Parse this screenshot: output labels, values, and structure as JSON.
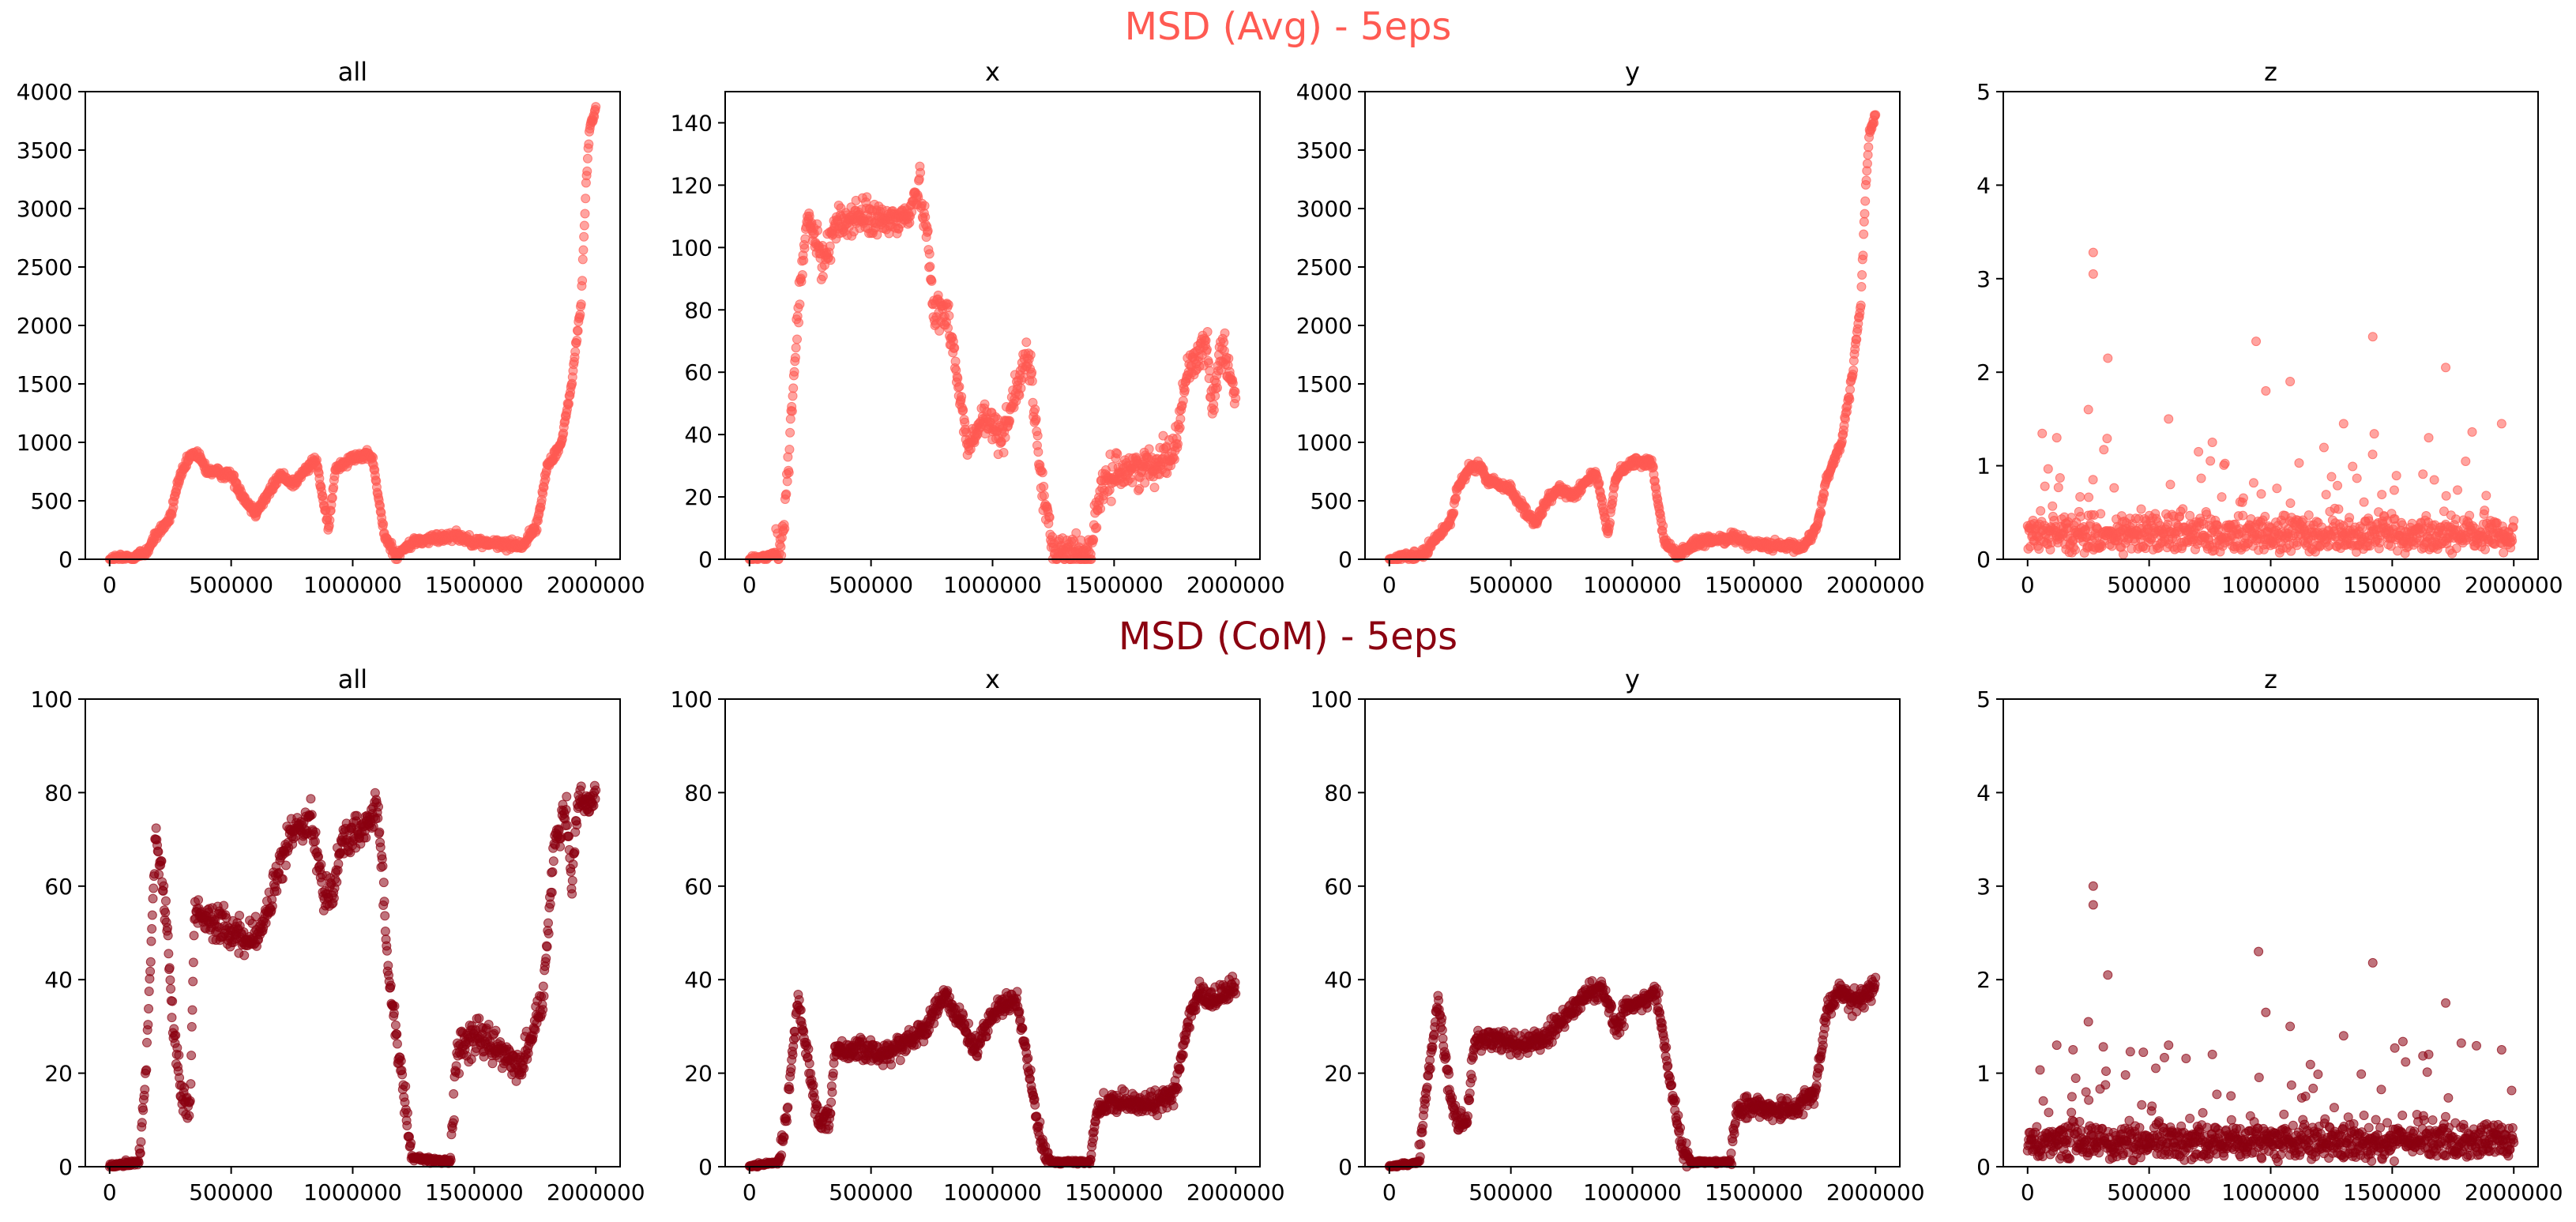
{
  "figure": {
    "rows": [
      {
        "title": "MSD (Avg) - 5eps",
        "color": "#ff5a52"
      },
      {
        "title": "MSD (CoM) - 5eps",
        "color": "#8b0010"
      }
    ]
  },
  "chart_data": [
    {
      "type": "scatter",
      "row": 0,
      "col": 0,
      "title": "all",
      "xlabel": "",
      "ylabel": "",
      "color": "#ff5a52",
      "xlim": [
        -100000,
        2100000
      ],
      "ylim": [
        0,
        4000
      ],
      "xticks": [
        0,
        500000,
        1000000,
        1500000,
        2000000
      ],
      "yticks": [
        0,
        500,
        1000,
        1500,
        2000,
        2500,
        3000,
        3500,
        4000
      ],
      "trend": [
        [
          0,
          0
        ],
        [
          100000,
          20
        ],
        [
          150000,
          60
        ],
        [
          200000,
          230
        ],
        [
          250000,
          350
        ],
        [
          280000,
          650
        ],
        [
          330000,
          880
        ],
        [
          360000,
          900
        ],
        [
          400000,
          760
        ],
        [
          500000,
          720
        ],
        [
          560000,
          500
        ],
        [
          600000,
          400
        ],
        [
          650000,
          550
        ],
        [
          700000,
          720
        ],
        [
          760000,
          650
        ],
        [
          800000,
          750
        ],
        [
          850000,
          850
        ],
        [
          900000,
          250
        ],
        [
          930000,
          780
        ],
        [
          1000000,
          880
        ],
        [
          1080000,
          880
        ],
        [
          1130000,
          200
        ],
        [
          1180000,
          30
        ],
        [
          1250000,
          150
        ],
        [
          1350000,
          180
        ],
        [
          1420000,
          210
        ],
        [
          1500000,
          150
        ],
        [
          1600000,
          130
        ],
        [
          1700000,
          120
        ],
        [
          1760000,
          300
        ],
        [
          1800000,
          800
        ],
        [
          1860000,
          1000
        ],
        [
          1900000,
          1500
        ],
        [
          1940000,
          2200
        ],
        [
          1960000,
          3200
        ],
        [
          1975000,
          3700
        ],
        [
          2000000,
          3850
        ]
      ],
      "noise": 45
    },
    {
      "type": "scatter",
      "row": 0,
      "col": 1,
      "title": "x",
      "xlabel": "",
      "ylabel": "",
      "color": "#ff5a52",
      "xlim": [
        -100000,
        2100000
      ],
      "ylim": [
        0,
        150
      ],
      "xticks": [
        0,
        500000,
        1000000,
        1500000,
        2000000
      ],
      "yticks": [
        0,
        20,
        40,
        60,
        80,
        100,
        120,
        140
      ],
      "trend": [
        [
          0,
          0
        ],
        [
          80000,
          1
        ],
        [
          130000,
          3
        ],
        [
          160000,
          30
        ],
        [
          200000,
          80
        ],
        [
          240000,
          110
        ],
        [
          300000,
          95
        ],
        [
          350000,
          107
        ],
        [
          450000,
          110
        ],
        [
          550000,
          108
        ],
        [
          650000,
          110
        ],
        [
          700000,
          120
        ],
        [
          730000,
          105
        ],
        [
          760000,
          80
        ],
        [
          820000,
          78
        ],
        [
          860000,
          55
        ],
        [
          900000,
          35
        ],
        [
          960000,
          45
        ],
        [
          1040000,
          40
        ],
        [
          1100000,
          55
        ],
        [
          1150000,
          65
        ],
        [
          1200000,
          25
        ],
        [
          1250000,
          3
        ],
        [
          1400000,
          2
        ],
        [
          1440000,
          20
        ],
        [
          1500000,
          28
        ],
        [
          1650000,
          30
        ],
        [
          1750000,
          35
        ],
        [
          1800000,
          60
        ],
        [
          1880000,
          70
        ],
        [
          1900000,
          50
        ],
        [
          1950000,
          70
        ],
        [
          2000000,
          50
        ]
      ],
      "noise": 6
    },
    {
      "type": "scatter",
      "row": 0,
      "col": 2,
      "title": "y",
      "xlabel": "",
      "ylabel": "",
      "color": "#ff5a52",
      "xlim": [
        -100000,
        2100000
      ],
      "ylim": [
        0,
        4000
      ],
      "xticks": [
        0,
        500000,
        1000000,
        1500000,
        2000000
      ],
      "yticks": [
        0,
        500,
        1000,
        1500,
        2000,
        2500,
        3000,
        3500,
        4000
      ],
      "trend": [
        [
          0,
          0
        ],
        [
          100000,
          20
        ],
        [
          150000,
          60
        ],
        [
          200000,
          200
        ],
        [
          250000,
          320
        ],
        [
          280000,
          600
        ],
        [
          330000,
          780
        ],
        [
          370000,
          800
        ],
        [
          400000,
          680
        ],
        [
          500000,
          600
        ],
        [
          560000,
          400
        ],
        [
          600000,
          300
        ],
        [
          650000,
          500
        ],
        [
          700000,
          600
        ],
        [
          760000,
          550
        ],
        [
          800000,
          650
        ],
        [
          850000,
          750
        ],
        [
          900000,
          200
        ],
        [
          930000,
          700
        ],
        [
          1000000,
          830
        ],
        [
          1080000,
          830
        ],
        [
          1130000,
          180
        ],
        [
          1180000,
          30
        ],
        [
          1250000,
          130
        ],
        [
          1350000,
          170
        ],
        [
          1420000,
          190
        ],
        [
          1500000,
          130
        ],
        [
          1600000,
          110
        ],
        [
          1700000,
          100
        ],
        [
          1760000,
          280
        ],
        [
          1800000,
          700
        ],
        [
          1860000,
          1000
        ],
        [
          1900000,
          1500
        ],
        [
          1940000,
          2200
        ],
        [
          1960000,
          3200
        ],
        [
          1975000,
          3650
        ],
        [
          2000000,
          3800
        ]
      ],
      "noise": 45
    },
    {
      "type": "scatter",
      "row": 0,
      "col": 3,
      "title": "z",
      "xlabel": "",
      "ylabel": "",
      "color": "#ff5a52",
      "xlim": [
        -100000,
        2100000
      ],
      "ylim": [
        0,
        5
      ],
      "xticks": [
        0,
        500000,
        1000000,
        1500000,
        2000000
      ],
      "yticks": [
        0,
        1,
        2,
        3,
        4,
        5
      ],
      "trend": [
        [
          0,
          0.25
        ],
        [
          2000000,
          0.25
        ]
      ],
      "noise": 0.25,
      "outliers": [
        [
          270000,
          3.28
        ],
        [
          270000,
          3.05
        ],
        [
          330000,
          2.15
        ],
        [
          940000,
          2.33
        ],
        [
          1420000,
          2.38
        ],
        [
          1720000,
          2.05
        ],
        [
          250000,
          1.6
        ],
        [
          580000,
          1.5
        ],
        [
          980000,
          1.8
        ],
        [
          1080000,
          1.9
        ],
        [
          1300000,
          1.45
        ],
        [
          1650000,
          1.3
        ],
        [
          1950000,
          1.45
        ],
        [
          120000,
          1.3
        ],
        [
          760000,
          1.25
        ]
      ]
    },
    {
      "type": "scatter",
      "row": 1,
      "col": 0,
      "title": "all",
      "xlabel": "",
      "ylabel": "",
      "color": "#8b0010",
      "xlim": [
        -100000,
        2100000
      ],
      "ylim": [
        0,
        100
      ],
      "xticks": [
        0,
        500000,
        1000000,
        1500000,
        2000000
      ],
      "yticks": [
        0,
        20,
        40,
        60,
        80,
        100
      ],
      "trend": [
        [
          0,
          0
        ],
        [
          120000,
          1
        ],
        [
          150000,
          20
        ],
        [
          190000,
          72
        ],
        [
          230000,
          55
        ],
        [
          260000,
          30
        ],
        [
          300000,
          15
        ],
        [
          330000,
          12
        ],
        [
          350000,
          55
        ],
        [
          450000,
          52
        ],
        [
          550000,
          48
        ],
        [
          620000,
          50
        ],
        [
          680000,
          60
        ],
        [
          750000,
          72
        ],
        [
          830000,
          75
        ],
        [
          880000,
          58
        ],
        [
          920000,
          60
        ],
        [
          960000,
          70
        ],
        [
          1050000,
          72
        ],
        [
          1100000,
          78
        ],
        [
          1150000,
          40
        ],
        [
          1200000,
          20
        ],
        [
          1240000,
          2
        ],
        [
          1400000,
          1
        ],
        [
          1430000,
          25
        ],
        [
          1500000,
          28
        ],
        [
          1600000,
          25
        ],
        [
          1700000,
          22
        ],
        [
          1780000,
          35
        ],
        [
          1830000,
          70
        ],
        [
          1880000,
          75
        ],
        [
          1900000,
          60
        ],
        [
          1930000,
          78
        ],
        [
          2000000,
          78
        ]
      ],
      "noise": 4
    },
    {
      "type": "scatter",
      "row": 1,
      "col": 1,
      "title": "x",
      "xlabel": "",
      "ylabel": "",
      "color": "#8b0010",
      "xlim": [
        -100000,
        2100000
      ],
      "ylim": [
        0,
        100
      ],
      "xticks": [
        0,
        500000,
        1000000,
        1500000,
        2000000
      ],
      "yticks": [
        0,
        20,
        40,
        60,
        80,
        100
      ],
      "trend": [
        [
          0,
          0
        ],
        [
          120000,
          1
        ],
        [
          150000,
          10
        ],
        [
          200000,
          36
        ],
        [
          250000,
          20
        ],
        [
          280000,
          10
        ],
        [
          330000,
          10
        ],
        [
          350000,
          25
        ],
        [
          450000,
          25
        ],
        [
          550000,
          24
        ],
        [
          650000,
          27
        ],
        [
          730000,
          30
        ],
        [
          800000,
          37
        ],
        [
          880000,
          30
        ],
        [
          930000,
          25
        ],
        [
          1000000,
          33
        ],
        [
          1100000,
          36
        ],
        [
          1150000,
          20
        ],
        [
          1200000,
          5
        ],
        [
          1240000,
          1
        ],
        [
          1400000,
          1
        ],
        [
          1430000,
          12
        ],
        [
          1500000,
          14
        ],
        [
          1650000,
          13
        ],
        [
          1750000,
          16
        ],
        [
          1800000,
          30
        ],
        [
          1850000,
          37
        ],
        [
          1900000,
          35
        ],
        [
          2000000,
          39
        ]
      ],
      "noise": 2.5
    },
    {
      "type": "scatter",
      "row": 1,
      "col": 2,
      "title": "y",
      "xlabel": "",
      "ylabel": "",
      "color": "#8b0010",
      "xlim": [
        -100000,
        2100000
      ],
      "ylim": [
        0,
        100
      ],
      "xticks": [
        0,
        500000,
        1000000,
        1500000,
        2000000
      ],
      "yticks": [
        0,
        20,
        40,
        60,
        80,
        100
      ],
      "trend": [
        [
          0,
          0
        ],
        [
          120000,
          1
        ],
        [
          150000,
          15
        ],
        [
          200000,
          36
        ],
        [
          250000,
          15
        ],
        [
          280000,
          10
        ],
        [
          320000,
          10
        ],
        [
          350000,
          27
        ],
        [
          450000,
          27
        ],
        [
          550000,
          26
        ],
        [
          650000,
          28
        ],
        [
          730000,
          32
        ],
        [
          800000,
          37
        ],
        [
          880000,
          38
        ],
        [
          930000,
          30
        ],
        [
          1000000,
          35
        ],
        [
          1100000,
          37
        ],
        [
          1150000,
          20
        ],
        [
          1200000,
          5
        ],
        [
          1240000,
          1
        ],
        [
          1400000,
          1
        ],
        [
          1430000,
          12
        ],
        [
          1500000,
          13
        ],
        [
          1650000,
          12
        ],
        [
          1750000,
          16
        ],
        [
          1800000,
          33
        ],
        [
          1850000,
          38
        ],
        [
          1900000,
          35
        ],
        [
          2000000,
          39
        ]
      ],
      "noise": 2.5
    },
    {
      "type": "scatter",
      "row": 1,
      "col": 3,
      "title": "z",
      "xlabel": "",
      "ylabel": "",
      "color": "#8b0010",
      "xlim": [
        -100000,
        2100000
      ],
      "ylim": [
        0,
        5
      ],
      "xticks": [
        0,
        500000,
        1000000,
        1500000,
        2000000
      ],
      "yticks": [
        0,
        1,
        2,
        3,
        4,
        5
      ],
      "trend": [
        [
          0,
          0.25
        ],
        [
          2000000,
          0.25
        ]
      ],
      "noise": 0.25,
      "outliers": [
        [
          270000,
          3.0
        ],
        [
          270000,
          2.8
        ],
        [
          330000,
          2.05
        ],
        [
          950000,
          2.3
        ],
        [
          1420000,
          2.18
        ],
        [
          1720000,
          1.75
        ],
        [
          250000,
          1.55
        ],
        [
          580000,
          1.3
        ],
        [
          980000,
          1.65
        ],
        [
          1080000,
          1.5
        ],
        [
          1300000,
          1.4
        ],
        [
          1650000,
          1.2
        ],
        [
          1950000,
          1.25
        ],
        [
          120000,
          1.3
        ],
        [
          760000,
          1.2
        ]
      ]
    }
  ]
}
